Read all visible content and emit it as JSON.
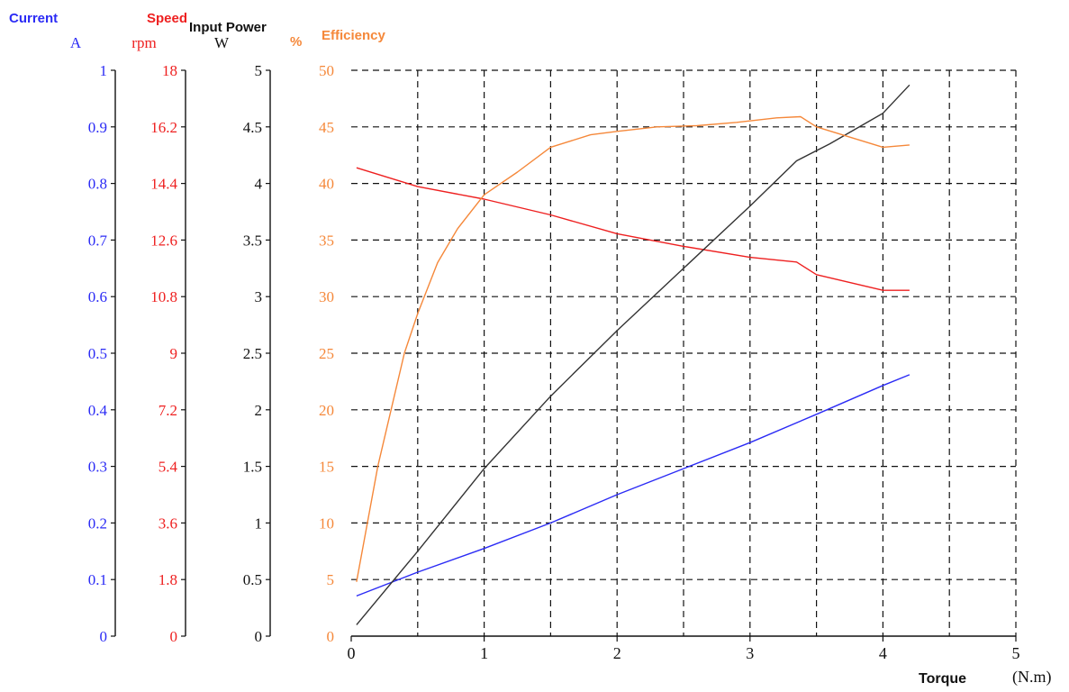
{
  "chart_data": {
    "type": "line",
    "xlabel": "Torque",
    "xunit": "(N.m)",
    "xlim": [
      0,
      5
    ],
    "x_ticks": [
      "0",
      "1",
      "2",
      "3",
      "4",
      "5"
    ],
    "grid": true,
    "axes": [
      {
        "key": "current",
        "title": "Current",
        "unit": "A",
        "color": "#2b2bf5",
        "ylim": [
          0,
          1
        ],
        "ticks": [
          "0",
          "0.1",
          "0.2",
          "0.3",
          "0.4",
          "0.5",
          "0.6",
          "0.7",
          "0.8",
          "0.9",
          "1"
        ]
      },
      {
        "key": "speed",
        "title": "Speed",
        "unit": "rpm",
        "color": "#ee2020",
        "ylim": [
          0,
          18
        ],
        "ticks": [
          "0",
          "1.8",
          "3.6",
          "5.4",
          "7.2",
          "9",
          "10.8",
          "12.6",
          "14.4",
          "16.2",
          "18"
        ]
      },
      {
        "key": "input_power",
        "title": "Input Power",
        "unit": "W",
        "color": "#111111",
        "ylim": [
          0,
          5
        ],
        "ticks": [
          "0",
          "0.5",
          "1",
          "1.5",
          "2",
          "2.5",
          "3",
          "3.5",
          "4",
          "4.5",
          "5"
        ]
      },
      {
        "key": "efficiency",
        "title": "Efficiency",
        "unit": "%",
        "color": "#f5883a",
        "ylim": [
          0,
          50
        ],
        "ticks": [
          "0",
          "5",
          "10",
          "15",
          "20",
          "25",
          "30",
          "35",
          "40",
          "45",
          "50"
        ]
      }
    ],
    "series": [
      {
        "axis": "current",
        "color": "#2b2bf5",
        "x": [
          0.04,
          0.5,
          1.0,
          1.5,
          2.0,
          2.5,
          3.0,
          3.5,
          4.0,
          4.2
        ],
        "y": [
          0.071,
          0.113,
          0.155,
          0.2,
          0.25,
          0.296,
          0.342,
          0.392,
          0.443,
          0.462
        ]
      },
      {
        "axis": "speed",
        "color": "#ee2020",
        "x": [
          0.04,
          0.5,
          1.0,
          1.5,
          2.0,
          2.5,
          3.0,
          3.35,
          3.5,
          4.0,
          4.2
        ],
        "y": [
          14.9,
          14.3,
          13.9,
          13.4,
          12.8,
          12.4,
          12.05,
          11.9,
          11.5,
          11.0,
          11.0
        ]
      },
      {
        "axis": "input_power",
        "color": "#333333",
        "x": [
          0.04,
          0.5,
          1.0,
          1.5,
          2.0,
          2.5,
          3.0,
          3.35,
          3.6,
          4.0,
          4.2
        ],
        "y": [
          0.1,
          0.75,
          1.48,
          2.12,
          2.7,
          3.25,
          3.8,
          4.2,
          4.35,
          4.62,
          4.87
        ]
      },
      {
        "axis": "efficiency",
        "color": "#f5883a",
        "x": [
          0.04,
          0.2,
          0.4,
          0.5,
          0.65,
          0.8,
          1.0,
          1.25,
          1.5,
          1.8,
          2.0,
          2.3,
          2.6,
          2.9,
          3.2,
          3.38,
          3.5,
          4.0,
          4.2
        ],
        "y": [
          4.8,
          15.0,
          25.0,
          28.5,
          33.0,
          36.0,
          39.0,
          41.0,
          43.2,
          44.3,
          44.6,
          45.0,
          45.1,
          45.4,
          45.8,
          45.9,
          45.0,
          43.2,
          43.4
        ]
      }
    ]
  }
}
